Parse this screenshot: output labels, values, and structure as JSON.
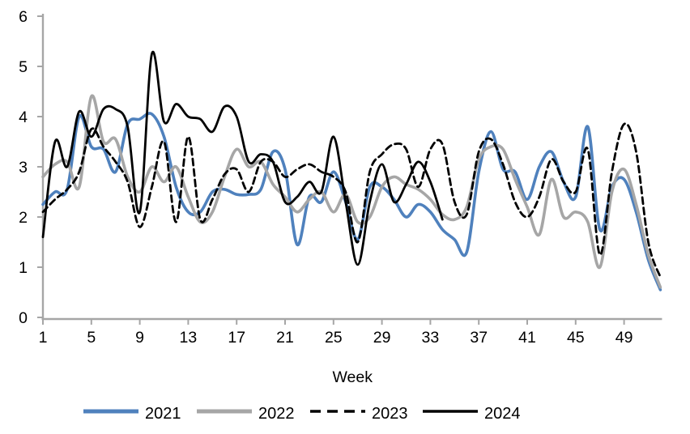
{
  "chart_data": {
    "type": "line",
    "title": "",
    "xlabel": "Week",
    "ylabel": "",
    "x_start": 1,
    "x_end": 52,
    "x_ticks": [
      1,
      5,
      9,
      13,
      17,
      21,
      25,
      29,
      33,
      37,
      41,
      45,
      49
    ],
    "y_ticks": [
      0,
      1,
      2,
      3,
      4,
      5,
      6
    ],
    "ylim": [
      0,
      6
    ],
    "grid": false,
    "legend_position": "bottom",
    "background_color": "#FFFFFF",
    "axis_color": "#A6A6A6",
    "text_color": "#000000",
    "series": [
      {
        "name": "2021",
        "color": "#4F81BD",
        "line_style": "solid",
        "values": [
          2.25,
          2.5,
          2.55,
          4.0,
          3.4,
          3.35,
          2.9,
          3.85,
          3.95,
          4.05,
          3.6,
          2.6,
          2.1,
          2.1,
          2.5,
          2.55,
          2.45,
          2.45,
          2.55,
          3.3,
          2.95,
          1.45,
          2.4,
          2.3,
          2.9,
          2.3,
          1.55,
          2.6,
          2.6,
          2.35,
          2.0,
          2.25,
          2.1,
          1.75,
          1.55,
          1.3,
          2.9,
          3.7,
          2.95,
          2.9,
          2.35,
          3.0,
          3.3,
          2.7,
          2.4,
          3.8,
          1.75,
          2.6,
          2.75,
          2.1,
          1.15,
          0.55
        ]
      },
      {
        "name": "2022",
        "color": "#A6A6A6",
        "line_style": "solid",
        "values": [
          2.8,
          3.05,
          3.1,
          2.6,
          4.4,
          3.5,
          3.55,
          2.8,
          2.5,
          3.0,
          2.7,
          3.0,
          2.4,
          1.9,
          2.1,
          2.8,
          3.35,
          3.0,
          3.1,
          2.65,
          2.4,
          2.1,
          2.35,
          2.5,
          2.1,
          2.45,
          1.9,
          2.0,
          2.6,
          2.8,
          2.65,
          2.55,
          2.35,
          2.05,
          1.95,
          2.2,
          3.15,
          3.4,
          3.35,
          2.75,
          2.2,
          1.65,
          2.75,
          2.0,
          2.1,
          1.9,
          1.0,
          2.5,
          2.95,
          2.25,
          1.25,
          0.6
        ]
      },
      {
        "name": "2023",
        "color": "#000000",
        "line_style": "dashed",
        "values": [
          2.1,
          2.35,
          2.55,
          2.9,
          3.75,
          3.4,
          3.1,
          2.7,
          1.8,
          2.6,
          3.5,
          1.9,
          3.6,
          1.95,
          2.35,
          2.85,
          2.95,
          2.5,
          3.1,
          3.1,
          2.8,
          2.95,
          3.05,
          2.9,
          2.8,
          2.5,
          1.5,
          2.9,
          3.25,
          3.45,
          3.35,
          2.6,
          3.35,
          3.45,
          2.3,
          2.05,
          3.3,
          3.55,
          3.05,
          2.3,
          2.0,
          2.4,
          3.15,
          2.7,
          2.5,
          3.35,
          1.25,
          2.9,
          3.85,
          3.3,
          1.5,
          0.8
        ]
      },
      {
        "name": "2024",
        "color": "#000000",
        "line_style": "solid",
        "values": [
          1.6,
          3.5,
          3.0,
          4.1,
          3.6,
          4.15,
          4.15,
          3.8,
          2.1,
          5.25,
          3.9,
          4.25,
          4.0,
          3.95,
          3.7,
          4.2,
          4.0,
          3.1,
          3.25,
          3.1,
          2.3,
          2.4,
          2.7,
          2.5,
          3.6,
          2.3,
          1.05,
          2.3,
          3.05,
          2.3,
          2.65,
          3.1,
          2.7,
          1.95
        ]
      }
    ]
  }
}
